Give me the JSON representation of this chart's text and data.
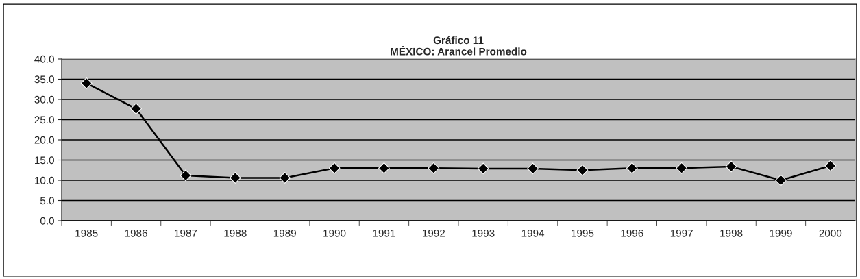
{
  "chart_data": {
    "type": "line",
    "title": "Gráfico 11\nMÉXICO: Arancel Promedio",
    "categories": [
      "1985",
      "1986",
      "1987",
      "1988",
      "1989",
      "1990",
      "1991",
      "1992",
      "1993",
      "1994",
      "1995",
      "1996",
      "1997",
      "1998",
      "1999",
      "2000"
    ],
    "series": [
      {
        "color": "#000000",
        "values": [
          34.0,
          27.7,
          11.2,
          10.6,
          10.6,
          13.0,
          13.0,
          13.0,
          12.9,
          12.9,
          12.5,
          13.0,
          13.0,
          13.4,
          10.0,
          13.6
        ]
      }
    ],
    "ylim": [
      0,
      40
    ],
    "yticks": [
      {
        "value": 0,
        "label": "0.0"
      },
      {
        "value": 5,
        "label": "5.0"
      },
      {
        "value": 10,
        "label": "10.0"
      },
      {
        "value": 15,
        "label": "15.0"
      },
      {
        "value": 20,
        "label": "20.0"
      },
      {
        "value": 25,
        "label": "25.0"
      },
      {
        "value": 30,
        "label": "30.0"
      },
      {
        "value": 35,
        "label": "35.0"
      },
      {
        "value": 40,
        "label": "40.0"
      }
    ],
    "grid": "y",
    "marker": "diamond",
    "line_style": "solid",
    "legend": false
  }
}
